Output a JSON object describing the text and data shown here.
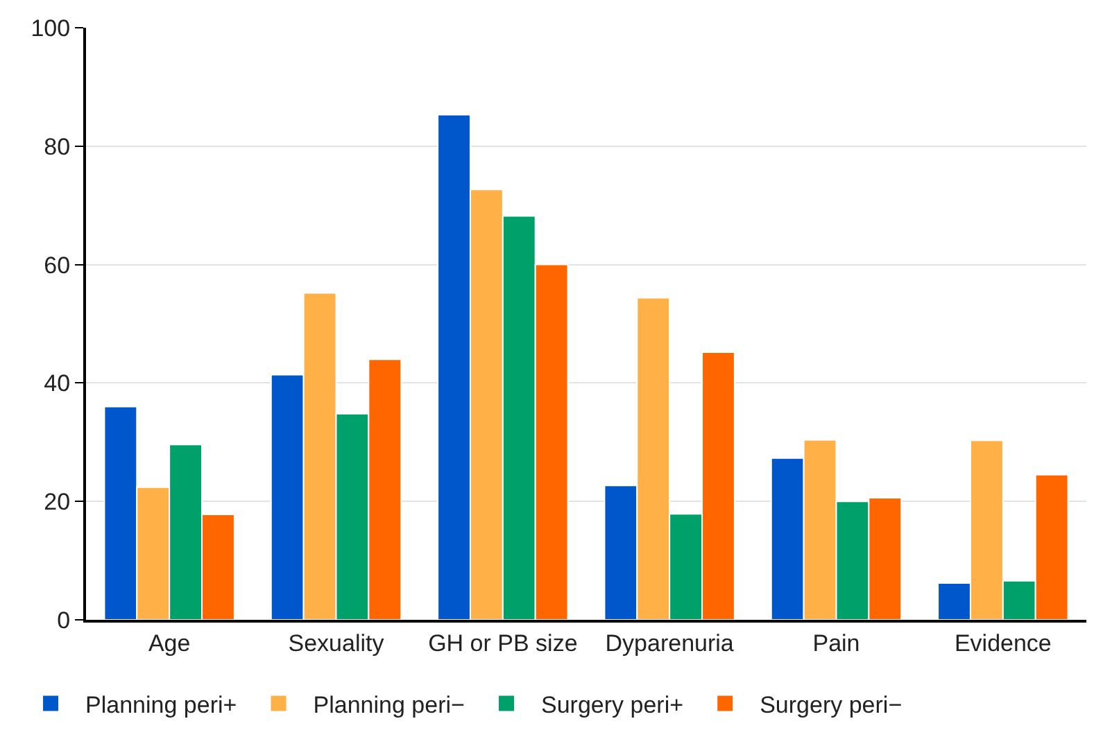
{
  "chart_data": {
    "type": "bar",
    "categories": [
      "Age",
      "Sexuality",
      "GH or PB size",
      "Dyparenuria",
      "Pain",
      "Evidence"
    ],
    "series": [
      {
        "name": "Planning peri+",
        "color": "#0057cc",
        "values": [
          36.0,
          41.4,
          85.3,
          22.7,
          27.3,
          6.2
        ]
      },
      {
        "name": "Planning peri−",
        "color": "#ffb047",
        "values": [
          22.4,
          55.2,
          72.7,
          54.4,
          30.4,
          30.3
        ]
      },
      {
        "name": "Surgery peri+",
        "color": "#00a06a",
        "values": [
          29.6,
          34.8,
          68.2,
          17.9,
          20.0,
          6.6
        ]
      },
      {
        "name": "Surgery peri−",
        "color": "#ff6600",
        "values": [
          17.8,
          44.0,
          60.0,
          45.2,
          20.6,
          24.5
        ]
      }
    ],
    "ylim": [
      0,
      100
    ],
    "yticks": [
      0,
      20,
      40,
      60,
      80,
      100
    ],
    "grid": "y",
    "legend": "bottom"
  }
}
